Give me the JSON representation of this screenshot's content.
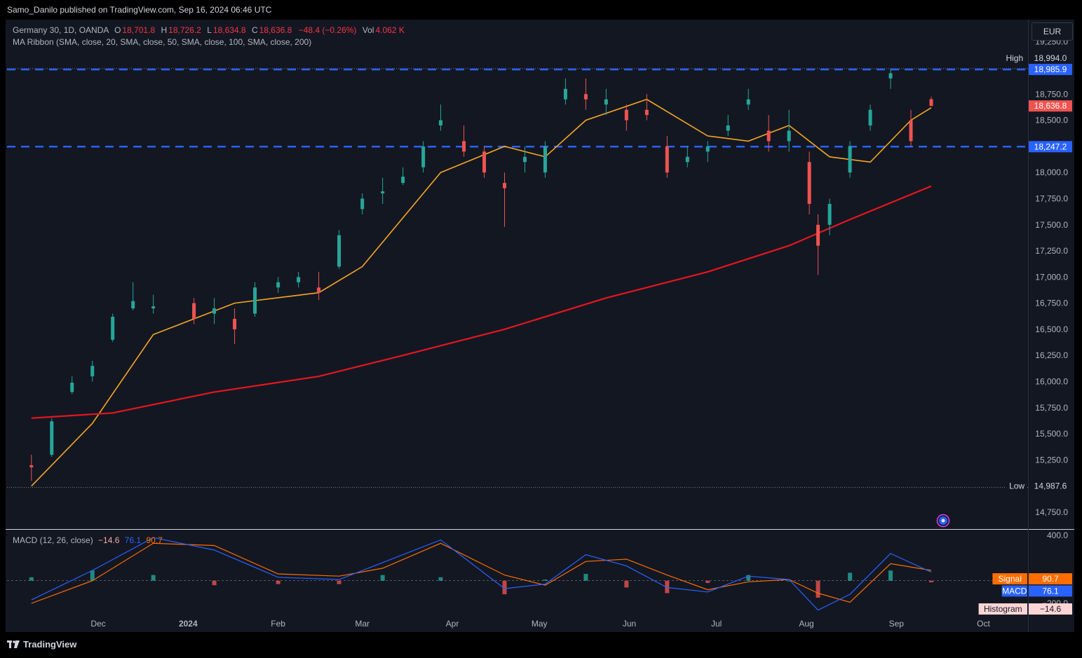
{
  "header": {
    "publisher": "Samo_Danilo published on TradingView.com, Sep 16, 2024 06:46 UTC"
  },
  "legend": {
    "title": "Germany 30, 1D, OANDA",
    "open_label": "O",
    "open": "18,701.8",
    "high_label": "H",
    "high": "18,726.2",
    "low_label": "L",
    "low": "18,634.8",
    "close_label": "C",
    "close": "18,636.8",
    "change": "−48.4 (−0.26%)",
    "vol_label": "Vol",
    "vol": "4.062 K",
    "ma_ribbon": "MA Ribbon (SMA, close, 20, SMA, close, 50, SMA, close, 100, SMA, close, 200)"
  },
  "macd_legend": {
    "title": "MACD (12, 26, close)",
    "hist": "−14.6",
    "macd": "76.1",
    "signal": "90.7"
  },
  "currency": "EUR",
  "price_scale": {
    "ticks": [
      "19,250.0",
      "18,750.0",
      "18,500.0",
      "18,000.0",
      "17,750.0",
      "17,500.0",
      "17,250.0",
      "17,000.0",
      "16,750.0",
      "16,500.0",
      "16,250.0",
      "16,000.0",
      "15,750.0",
      "15,500.0",
      "15,250.0",
      "14,750.0"
    ],
    "high_tag_label": "High",
    "high_tag_value": "18,994.0",
    "low_tag_label": "Low",
    "low_tag_value": "14,987.6",
    "resistance_value": "18,985.9",
    "last_price_value": "18,636.8",
    "support_value": "18,247.2"
  },
  "macd_scale": {
    "ticks": [
      "400.0",
      "−200.0"
    ],
    "signal_label": "Signal",
    "signal_value": "90.7",
    "macd_label": "MACD",
    "macd_value": "76.1",
    "hist_label": "Histogram",
    "hist_value": "−14.6"
  },
  "time_axis": [
    "Dec",
    "2024",
    "Feb",
    "Mar",
    "Apr",
    "May",
    "Jun",
    "Jul",
    "Aug",
    "Sep",
    "Oct"
  ],
  "colors": {
    "up": "#26a69a",
    "down": "#ef5350",
    "sma20": "#f5a623",
    "sma200": "#e5161f",
    "level_line": "#2962ff",
    "macd": "#2962ff",
    "signal": "#ff6d00"
  },
  "icons": [
    "target-badge-icon",
    "tradingview-logo-icon"
  ],
  "chart_data": {
    "type": "candlestick",
    "symbol": "Germany 30",
    "interval": "1D",
    "source": "OANDA",
    "ylim": [
      14700,
      19300
    ],
    "horizontal_levels": [
      18985.9,
      18247.2
    ],
    "high": 18994.0,
    "low": 14987.6,
    "last_close": 18636.8,
    "x_tick_labels": [
      "Dec",
      "2024",
      "Feb",
      "Mar",
      "Apr",
      "May",
      "Jun",
      "Jul",
      "Aug",
      "Sep",
      "Oct"
    ],
    "ohlc_sampled": [
      {
        "date": "2023-11-08",
        "o": 15200,
        "h": 15300,
        "l": 15050,
        "c": 15180
      },
      {
        "date": "2023-11-15",
        "o": 15300,
        "h": 15650,
        "l": 15280,
        "c": 15620
      },
      {
        "date": "2023-11-22",
        "o": 15900,
        "h": 16050,
        "l": 15880,
        "c": 15990
      },
      {
        "date": "2023-11-29",
        "o": 16050,
        "h": 16200,
        "l": 16000,
        "c": 16150
      },
      {
        "date": "2023-12-06",
        "o": 16400,
        "h": 16650,
        "l": 16380,
        "c": 16620
      },
      {
        "date": "2023-12-13",
        "o": 16700,
        "h": 16950,
        "l": 16680,
        "c": 16770
      },
      {
        "date": "2023-12-20",
        "o": 16700,
        "h": 16830,
        "l": 16650,
        "c": 16720
      },
      {
        "date": "2024-01-03",
        "o": 16750,
        "h": 16800,
        "l": 16550,
        "c": 16600
      },
      {
        "date": "2024-01-10",
        "o": 16650,
        "h": 16800,
        "l": 16550,
        "c": 16700
      },
      {
        "date": "2024-01-17",
        "o": 16600,
        "h": 16700,
        "l": 16360,
        "c": 16500
      },
      {
        "date": "2024-01-24",
        "o": 16650,
        "h": 16950,
        "l": 16620,
        "c": 16900
      },
      {
        "date": "2024-02-01",
        "o": 16900,
        "h": 17000,
        "l": 16850,
        "c": 16950
      },
      {
        "date": "2024-02-08",
        "o": 16950,
        "h": 17050,
        "l": 16900,
        "c": 17000
      },
      {
        "date": "2024-02-15",
        "o": 16900,
        "h": 17050,
        "l": 16780,
        "c": 16850
      },
      {
        "date": "2024-02-22",
        "o": 17100,
        "h": 17450,
        "l": 17080,
        "c": 17400
      },
      {
        "date": "2024-03-01",
        "o": 17650,
        "h": 17800,
        "l": 17600,
        "c": 17750
      },
      {
        "date": "2024-03-08",
        "o": 17800,
        "h": 17950,
        "l": 17700,
        "c": 17820
      },
      {
        "date": "2024-03-15",
        "o": 17900,
        "h": 18050,
        "l": 17880,
        "c": 17960
      },
      {
        "date": "2024-03-22",
        "o": 18050,
        "h": 18300,
        "l": 18000,
        "c": 18250
      },
      {
        "date": "2024-03-28",
        "o": 18450,
        "h": 18650,
        "l": 18400,
        "c": 18500
      },
      {
        "date": "2024-04-05",
        "o": 18300,
        "h": 18450,
        "l": 18150,
        "c": 18200
      },
      {
        "date": "2024-04-12",
        "o": 18200,
        "h": 18250,
        "l": 17950,
        "c": 18000
      },
      {
        "date": "2024-04-19",
        "o": 17900,
        "h": 18000,
        "l": 17480,
        "c": 17850
      },
      {
        "date": "2024-04-26",
        "o": 18100,
        "h": 18250,
        "l": 18000,
        "c": 18150
      },
      {
        "date": "2024-05-03",
        "o": 18000,
        "h": 18300,
        "l": 17950,
        "c": 18250
      },
      {
        "date": "2024-05-10",
        "o": 18700,
        "h": 18900,
        "l": 18650,
        "c": 18800
      },
      {
        "date": "2024-05-17",
        "o": 18750,
        "h": 18900,
        "l": 18600,
        "c": 18700
      },
      {
        "date": "2024-05-24",
        "o": 18650,
        "h": 18800,
        "l": 18550,
        "c": 18700
      },
      {
        "date": "2024-05-31",
        "o": 18600,
        "h": 18650,
        "l": 18400,
        "c": 18500
      },
      {
        "date": "2024-06-07",
        "o": 18600,
        "h": 18750,
        "l": 18500,
        "c": 18550
      },
      {
        "date": "2024-06-14",
        "o": 18250,
        "h": 18350,
        "l": 17950,
        "c": 18000
      },
      {
        "date": "2024-06-21",
        "o": 18100,
        "h": 18250,
        "l": 18050,
        "c": 18150
      },
      {
        "date": "2024-06-28",
        "o": 18200,
        "h": 18300,
        "l": 18100,
        "c": 18250
      },
      {
        "date": "2024-07-05",
        "o": 18400,
        "h": 18550,
        "l": 18350,
        "c": 18450
      },
      {
        "date": "2024-07-12",
        "o": 18650,
        "h": 18800,
        "l": 18600,
        "c": 18700
      },
      {
        "date": "2024-07-19",
        "o": 18400,
        "h": 18550,
        "l": 18200,
        "c": 18300
      },
      {
        "date": "2024-07-26",
        "o": 18300,
        "h": 18600,
        "l": 18200,
        "c": 18400
      },
      {
        "date": "2024-08-02",
        "o": 18100,
        "h": 18200,
        "l": 17600,
        "c": 17700
      },
      {
        "date": "2024-08-05",
        "o": 17500,
        "h": 17600,
        "l": 17020,
        "c": 17300
      },
      {
        "date": "2024-08-09",
        "o": 17500,
        "h": 17750,
        "l": 17400,
        "c": 17700
      },
      {
        "date": "2024-08-16",
        "o": 18000,
        "h": 18300,
        "l": 17950,
        "c": 18250
      },
      {
        "date": "2024-08-23",
        "o": 18450,
        "h": 18650,
        "l": 18400,
        "c": 18600
      },
      {
        "date": "2024-08-30",
        "o": 18900,
        "h": 18994,
        "l": 18800,
        "c": 18950
      },
      {
        "date": "2024-09-06",
        "o": 18500,
        "h": 18600,
        "l": 18250,
        "c": 18300
      },
      {
        "date": "2024-09-13",
        "o": 18701.8,
        "h": 18726.2,
        "l": 18634.8,
        "c": 18636.8
      }
    ],
    "series": [
      {
        "name": "SMA 20",
        "points": [
          [
            "2023-11-08",
            15000
          ],
          [
            "2023-11-29",
            15600
          ],
          [
            "2023-12-20",
            16450
          ],
          [
            "2024-01-17",
            16750
          ],
          [
            "2024-02-15",
            16850
          ],
          [
            "2024-03-01",
            17100
          ],
          [
            "2024-03-28",
            18000
          ],
          [
            "2024-04-19",
            18250
          ],
          [
            "2024-05-03",
            18150
          ],
          [
            "2024-05-17",
            18500
          ],
          [
            "2024-06-07",
            18700
          ],
          [
            "2024-06-28",
            18350
          ],
          [
            "2024-07-12",
            18300
          ],
          [
            "2024-07-26",
            18450
          ],
          [
            "2024-08-09",
            18150
          ],
          [
            "2024-08-23",
            18100
          ],
          [
            "2024-09-06",
            18500
          ],
          [
            "2024-09-13",
            18620
          ]
        ]
      },
      {
        "name": "SMA 200",
        "points": [
          [
            "2023-11-08",
            15650
          ],
          [
            "2023-12-06",
            15700
          ],
          [
            "2024-01-10",
            15900
          ],
          [
            "2024-02-15",
            16050
          ],
          [
            "2024-03-15",
            16250
          ],
          [
            "2024-04-19",
            16500
          ],
          [
            "2024-05-24",
            16800
          ],
          [
            "2024-06-28",
            17050
          ],
          [
            "2024-07-26",
            17300
          ],
          [
            "2024-08-16",
            17550
          ],
          [
            "2024-09-13",
            17870
          ]
        ]
      }
    ],
    "macd": {
      "ylim": [
        -330,
        480
      ],
      "ticks": [
        400,
        -200
      ],
      "hist_last": -14.6,
      "macd_last": 76.1,
      "signal_last": 90.7,
      "macd_line": [
        [
          "2023-11-08",
          -170
        ],
        [
          "2023-11-29",
          90
        ],
        [
          "2023-12-20",
          380
        ],
        [
          "2024-01-10",
          270
        ],
        [
          "2024-02-01",
          30
        ],
        [
          "2024-02-22",
          10
        ],
        [
          "2024-03-08",
          160
        ],
        [
          "2024-03-28",
          360
        ],
        [
          "2024-04-19",
          -70
        ],
        [
          "2024-05-03",
          -30
        ],
        [
          "2024-05-17",
          230
        ],
        [
          "2024-05-31",
          130
        ],
        [
          "2024-06-14",
          -60
        ],
        [
          "2024-06-28",
          -100
        ],
        [
          "2024-07-12",
          40
        ],
        [
          "2024-07-26",
          10
        ],
        [
          "2024-08-05",
          -260
        ],
        [
          "2024-08-16",
          -120
        ],
        [
          "2024-08-30",
          240
        ],
        [
          "2024-09-13",
          76.1
        ]
      ],
      "signal_line": [
        [
          "2023-11-08",
          -200
        ],
        [
          "2023-11-29",
          0
        ],
        [
          "2023-12-20",
          330
        ],
        [
          "2024-01-10",
          310
        ],
        [
          "2024-02-01",
          60
        ],
        [
          "2024-02-22",
          40
        ],
        [
          "2024-03-08",
          110
        ],
        [
          "2024-03-28",
          330
        ],
        [
          "2024-04-19",
          50
        ],
        [
          "2024-05-03",
          -40
        ],
        [
          "2024-05-17",
          170
        ],
        [
          "2024-05-31",
          190
        ],
        [
          "2024-06-14",
          50
        ],
        [
          "2024-06-28",
          -80
        ],
        [
          "2024-07-12",
          -10
        ],
        [
          "2024-07-26",
          10
        ],
        [
          "2024-08-05",
          -110
        ],
        [
          "2024-08-16",
          -190
        ],
        [
          "2024-08-30",
          150
        ],
        [
          "2024-09-13",
          90.7
        ]
      ]
    }
  }
}
